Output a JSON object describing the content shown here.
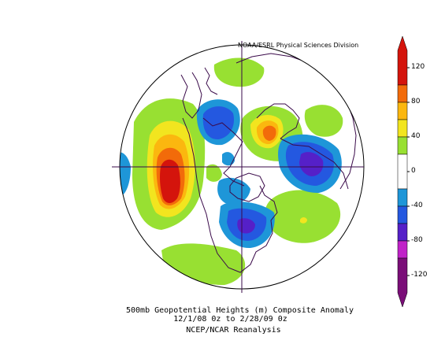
{
  "header": {
    "credit": "NOAA/ESRL Physical Sciences Division"
  },
  "caption": {
    "line1": "500mb Geopotential Heights (m)   Composite Anomaly",
    "line2": "12/1/08 0z  to 2/28/09 0z",
    "line3": "NCEP/NCAR Reanalysis"
  },
  "colorbar": {
    "ticks": [
      {
        "value": 120,
        "label": "120"
      },
      {
        "value": 80,
        "label": "80"
      },
      {
        "value": 40,
        "label": "40"
      },
      {
        "value": 0,
        "label": "0"
      },
      {
        "value": -40,
        "label": "-40"
      },
      {
        "value": -80,
        "label": "-80"
      },
      {
        "value": -120,
        "label": "-120"
      }
    ],
    "bands": [
      {
        "min": 100,
        "max": 140,
        "color": "#d4140c"
      },
      {
        "min": 80,
        "max": 100,
        "color": "#f26b0a"
      },
      {
        "min": 60,
        "max": 80,
        "color": "#fbb70f"
      },
      {
        "min": 40,
        "max": 60,
        "color": "#f2e51f"
      },
      {
        "min": 20,
        "max": 40,
        "color": "#98e032"
      },
      {
        "min": -20,
        "max": 20,
        "color": "#ffffff"
      },
      {
        "min": -40,
        "max": -20,
        "color": "#1e96d8"
      },
      {
        "min": -60,
        "max": -40,
        "color": "#2458e0"
      },
      {
        "min": -80,
        "max": -60,
        "color": "#5520c8"
      },
      {
        "min": -100,
        "max": -80,
        "color": "#c022c8"
      },
      {
        "min": -140,
        "max": -100,
        "color": "#7a0e78"
      }
    ]
  },
  "colors": {
    "coastline": "#3a0a4a",
    "outline": "#000000"
  }
}
